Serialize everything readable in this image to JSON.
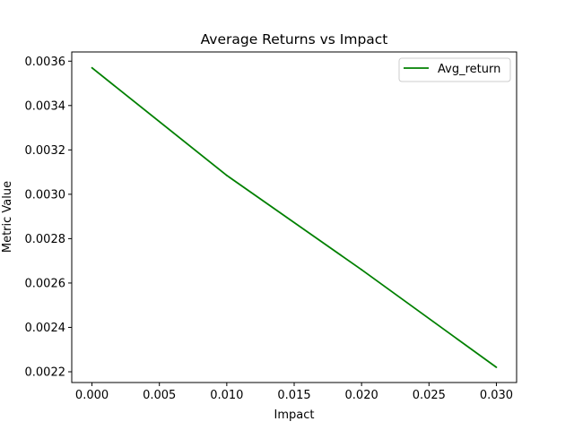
{
  "chart_data": {
    "type": "line",
    "title": "Average Returns vs Impact",
    "xlabel": "Impact",
    "ylabel": "Metric Value",
    "x": [
      0.0,
      0.01,
      0.02,
      0.03
    ],
    "series": [
      {
        "name": "Avg_return",
        "color": "#008000",
        "values": [
          0.00357,
          0.003085,
          0.00266,
          0.00222
        ]
      }
    ],
    "xlim": [
      -0.0015,
      0.0315
    ],
    "ylim": [
      0.0021515,
      0.0036415
    ],
    "xticks": [
      "0.000",
      "0.005",
      "0.010",
      "0.015",
      "0.020",
      "0.025",
      "0.030"
    ],
    "xtick_values": [
      0.0,
      0.005,
      0.01,
      0.015,
      0.02,
      0.025,
      0.03
    ],
    "yticks": [
      "0.0022",
      "0.0024",
      "0.0026",
      "0.0028",
      "0.0030",
      "0.0032",
      "0.0034",
      "0.0036"
    ],
    "ytick_values": [
      0.0022,
      0.0024,
      0.0026,
      0.0028,
      0.003,
      0.0032,
      0.0034,
      0.0036
    ],
    "grid": false,
    "legend_position": "top-right"
  }
}
